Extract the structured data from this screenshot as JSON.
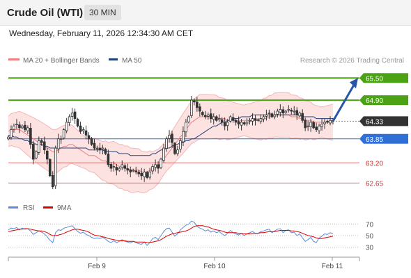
{
  "header": {
    "title": "Crude Oil (WTI)",
    "timeframe": "30 MIN",
    "timestamp": "Wednesday, February 11, 2026 12:34:30 AM CET"
  },
  "legend": {
    "bollinger": "MA 20 + Bollinger Bands",
    "ma50": "MA 50",
    "copyright": "Research © 2026 Trading Central",
    "rsi": "RSI",
    "ma9": "9MA"
  },
  "colors": {
    "resistance": "#4aa214",
    "support": "#e07070",
    "pivot": "#2f6fd6",
    "current": "#333333",
    "band_fill": "#fde2e2",
    "band_line": "#f5b5b5",
    "ma20": "#f08080",
    "ma50": "#1f3f78",
    "arrow": "#2756a8",
    "rsi": "#5b8bd9",
    "rsi_ma": "#e00000"
  },
  "chart_data": [
    {
      "type": "candlestick",
      "title": "Crude Oil (WTI)",
      "timeframe": "30 MIN",
      "x_ticks": [
        "Feb 9",
        "Feb 10",
        "Feb 11"
      ],
      "ylim": [
        62.3,
        65.75
      ],
      "levels": [
        {
          "value": 65.5,
          "label": "65.50",
          "kind": "resistance"
        },
        {
          "value": 64.9,
          "label": "64.90",
          "kind": "resistance"
        },
        {
          "value": 64.33,
          "label": "64.33",
          "kind": "current"
        },
        {
          "value": 63.85,
          "label": "63.85",
          "kind": "pivot"
        },
        {
          "value": 63.2,
          "label": "63.20",
          "kind": "support"
        },
        {
          "value": 62.65,
          "label": "62.65",
          "kind": "support"
        }
      ],
      "projection": {
        "from": 64.33,
        "to": 65.5,
        "direction": "up"
      },
      "close_series": [
        63.9,
        64.1,
        64.2,
        64.25,
        64.15,
        64.2,
        64.1,
        64.15,
        63.7,
        63.3,
        63.5,
        63.8,
        63.75,
        63.55,
        63.3,
        62.85,
        62.55,
        63.6,
        63.85,
        63.85,
        64.1,
        64.3,
        64.45,
        64.55,
        64.4,
        64.2,
        64.05,
        64.1,
        63.95,
        63.85,
        63.7,
        63.6,
        63.6,
        63.55,
        63.6,
        63.45,
        63.15,
        63.05,
        63.1,
        63.0,
        63.05,
        63.15,
        63.05,
        63.0,
        62.95,
        63.0,
        62.95,
        62.9,
        62.85,
        62.95,
        62.8,
        62.95,
        63.1,
        63.15,
        63.05,
        63.3,
        63.6,
        63.85,
        63.95,
        63.75,
        63.45,
        63.55,
        63.8,
        64.05,
        64.3,
        64.45,
        64.9,
        64.85,
        64.7,
        64.6,
        64.5,
        64.45,
        64.5,
        64.4,
        64.45,
        64.35,
        64.4,
        64.3,
        64.2,
        64.3,
        64.45,
        64.35,
        64.3,
        64.25,
        64.3,
        64.25,
        64.3,
        64.35,
        64.4,
        64.35,
        64.35,
        64.4,
        64.45,
        64.5,
        64.55,
        64.45,
        64.5,
        64.6,
        64.65,
        64.55,
        64.6,
        64.65,
        64.6,
        64.6,
        64.5,
        64.55,
        64.35,
        64.15,
        64.2,
        64.3,
        64.15,
        64.1,
        64.2,
        64.25,
        64.3,
        64.3,
        64.35,
        64.33
      ],
      "ma20_series": [
        64.05,
        64.1,
        64.1,
        64.1,
        64.1,
        64.05,
        64.0,
        63.95,
        63.9,
        63.85,
        63.8,
        63.75,
        63.7,
        63.65,
        63.6,
        63.55,
        63.5,
        63.5,
        63.55,
        63.6,
        63.65,
        63.65,
        63.7,
        63.7,
        63.65,
        63.6,
        63.55,
        63.5,
        63.45,
        63.4,
        63.4,
        63.4,
        63.35,
        63.3,
        63.25,
        63.25,
        63.2,
        63.2,
        63.2,
        63.15,
        63.1,
        63.1,
        63.05,
        63.05,
        63.0,
        63.0,
        63.0,
        63.0,
        62.95,
        62.95,
        62.95,
        63.0,
        63.0,
        63.05,
        63.1,
        63.2,
        63.3,
        63.4,
        63.5,
        63.6,
        63.7,
        63.8,
        63.9,
        64.0,
        64.1,
        64.2,
        64.3,
        64.35,
        64.4,
        64.45,
        64.45,
        64.45,
        64.45,
        64.45,
        64.45,
        64.45,
        64.4,
        64.4,
        64.4,
        64.35,
        64.35,
        64.35,
        64.35,
        64.35,
        64.35,
        64.35,
        64.35,
        64.35,
        64.35,
        64.35,
        64.35,
        64.35,
        64.4,
        64.4,
        64.45,
        64.45,
        64.5,
        64.5,
        64.5,
        64.5,
        64.5,
        64.5,
        64.45,
        64.45,
        64.45,
        64.4,
        64.4,
        64.35,
        64.35,
        64.35,
        64.3,
        64.3,
        64.3,
        64.3,
        64.3,
        64.3,
        64.3,
        64.3
      ],
      "ma50_series": [
        63.95,
        63.95,
        63.9,
        63.9,
        63.85,
        63.85,
        63.8,
        63.8,
        63.75,
        63.75,
        63.7,
        63.7,
        63.7,
        63.65,
        63.65,
        63.6,
        63.6,
        63.6,
        63.6,
        63.6,
        63.6,
        63.6,
        63.6,
        63.6,
        63.6,
        63.6,
        63.6,
        63.6,
        63.6,
        63.55,
        63.55,
        63.55,
        63.55,
        63.55,
        63.55,
        63.5,
        63.5,
        63.5,
        63.5,
        63.5,
        63.45,
        63.45,
        63.45,
        63.45,
        63.4,
        63.4,
        63.4,
        63.4,
        63.4,
        63.4,
        63.4,
        63.4,
        63.45,
        63.45,
        63.5,
        63.55,
        63.55,
        63.6,
        63.6,
        63.65,
        63.7,
        63.7,
        63.75,
        63.75,
        63.8,
        63.8,
        63.85,
        63.85,
        63.9,
        63.95,
        64.0,
        64.05,
        64.1,
        64.15,
        64.2,
        64.2,
        64.25,
        64.3,
        64.3,
        64.35,
        64.35,
        64.4,
        64.4,
        64.4,
        64.45,
        64.45,
        64.45,
        64.45,
        64.5,
        64.5,
        64.5,
        64.5,
        64.5,
        64.5,
        64.5,
        64.5,
        64.5,
        64.5,
        64.5,
        64.5,
        64.5,
        64.5,
        64.5,
        64.5,
        64.5,
        64.5,
        64.45,
        64.45,
        64.45,
        64.45,
        64.45,
        64.4,
        64.4,
        64.4,
        64.4,
        64.4,
        64.4,
        64.4
      ],
      "band_width": 0.55
    },
    {
      "type": "line",
      "title": "RSI",
      "yticks": [
        70,
        50,
        30
      ],
      "ylim": [
        20,
        80
      ],
      "series": [
        {
          "name": "RSI",
          "values": [
            60,
            63,
            62,
            64,
            60,
            63,
            61,
            62,
            58,
            52,
            55,
            58,
            56,
            53,
            48,
            42,
            38,
            55,
            60,
            59,
            63,
            64,
            66,
            67,
            62,
            57,
            54,
            56,
            52,
            50,
            47,
            45,
            46,
            45,
            47,
            44,
            40,
            38,
            41,
            38,
            40,
            43,
            40,
            39,
            37,
            40,
            38,
            36,
            35,
            39,
            33,
            38,
            45,
            47,
            43,
            50,
            57,
            62,
            63,
            56,
            49,
            53,
            60,
            64,
            68,
            70,
            75,
            73,
            66,
            63,
            61,
            58,
            60,
            56,
            58,
            55,
            57,
            53,
            50,
            54,
            59,
            55,
            53,
            51,
            54,
            50,
            53,
            55,
            57,
            54,
            54,
            57,
            58,
            60,
            61,
            55,
            58,
            61,
            62,
            55,
            59,
            60,
            55,
            56,
            50,
            53,
            46,
            40,
            43,
            47,
            40,
            38,
            46,
            49,
            53,
            52,
            55,
            53
          ]
        },
        {
          "name": "9MA",
          "values": [
            57,
            58,
            59,
            60,
            61,
            61,
            62,
            62,
            61,
            60,
            59,
            58,
            58,
            57,
            55,
            52,
            50,
            50,
            51,
            52,
            54,
            56,
            58,
            60,
            61,
            61,
            60,
            59,
            58,
            56,
            53,
            51,
            50,
            49,
            48,
            47,
            45,
            44,
            43,
            42,
            41,
            41,
            41,
            40,
            40,
            40,
            39,
            39,
            39,
            39,
            38,
            38,
            39,
            40,
            41,
            43,
            46,
            49,
            51,
            53,
            54,
            55,
            56,
            57,
            58,
            60,
            63,
            66,
            67,
            67,
            67,
            66,
            65,
            63,
            61,
            60,
            59,
            58,
            56,
            55,
            55,
            55,
            55,
            54,
            54,
            53,
            53,
            53,
            54,
            54,
            54,
            55,
            55,
            56,
            57,
            57,
            57,
            58,
            59,
            59,
            59,
            59,
            58,
            58,
            57,
            56,
            54,
            52,
            50,
            49,
            48,
            46,
            45,
            45,
            46,
            47,
            48,
            49
          ]
        }
      ]
    }
  ]
}
